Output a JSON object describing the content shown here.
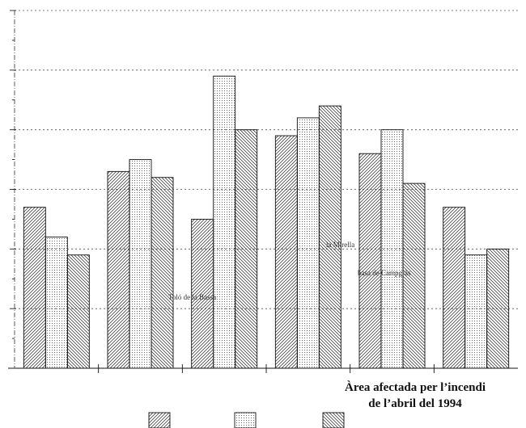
{
  "chart_data": {
    "type": "bar",
    "title": "",
    "xlabel": "",
    "ylabel": "",
    "ylim": [
      0,
      6
    ],
    "grid": true,
    "categories": [
      "",
      "",
      "",
      "",
      "",
      ""
    ],
    "series": [
      {
        "values": [
          2.7,
          3.3,
          2.5,
          3.9,
          3.6,
          2.7
        ]
      },
      {
        "values": [
          2.2,
          3.5,
          4.9,
          4.2,
          4.0,
          1.9
        ]
      },
      {
        "values": [
          1.9,
          3.2,
          4.0,
          4.4,
          3.1,
          2.0
        ]
      }
    ],
    "annotations": [
      "la Mirella",
      "basa de Campgràs",
      "Toló de la Bassa"
    ],
    "caption": [
      "Àrea afectada per l’incendi",
      "de l’abril del 1994"
    ],
    "legend_position": "bottom-center",
    "patterns": [
      "diagonal-forward",
      "dots",
      "diagonal-back"
    ]
  }
}
